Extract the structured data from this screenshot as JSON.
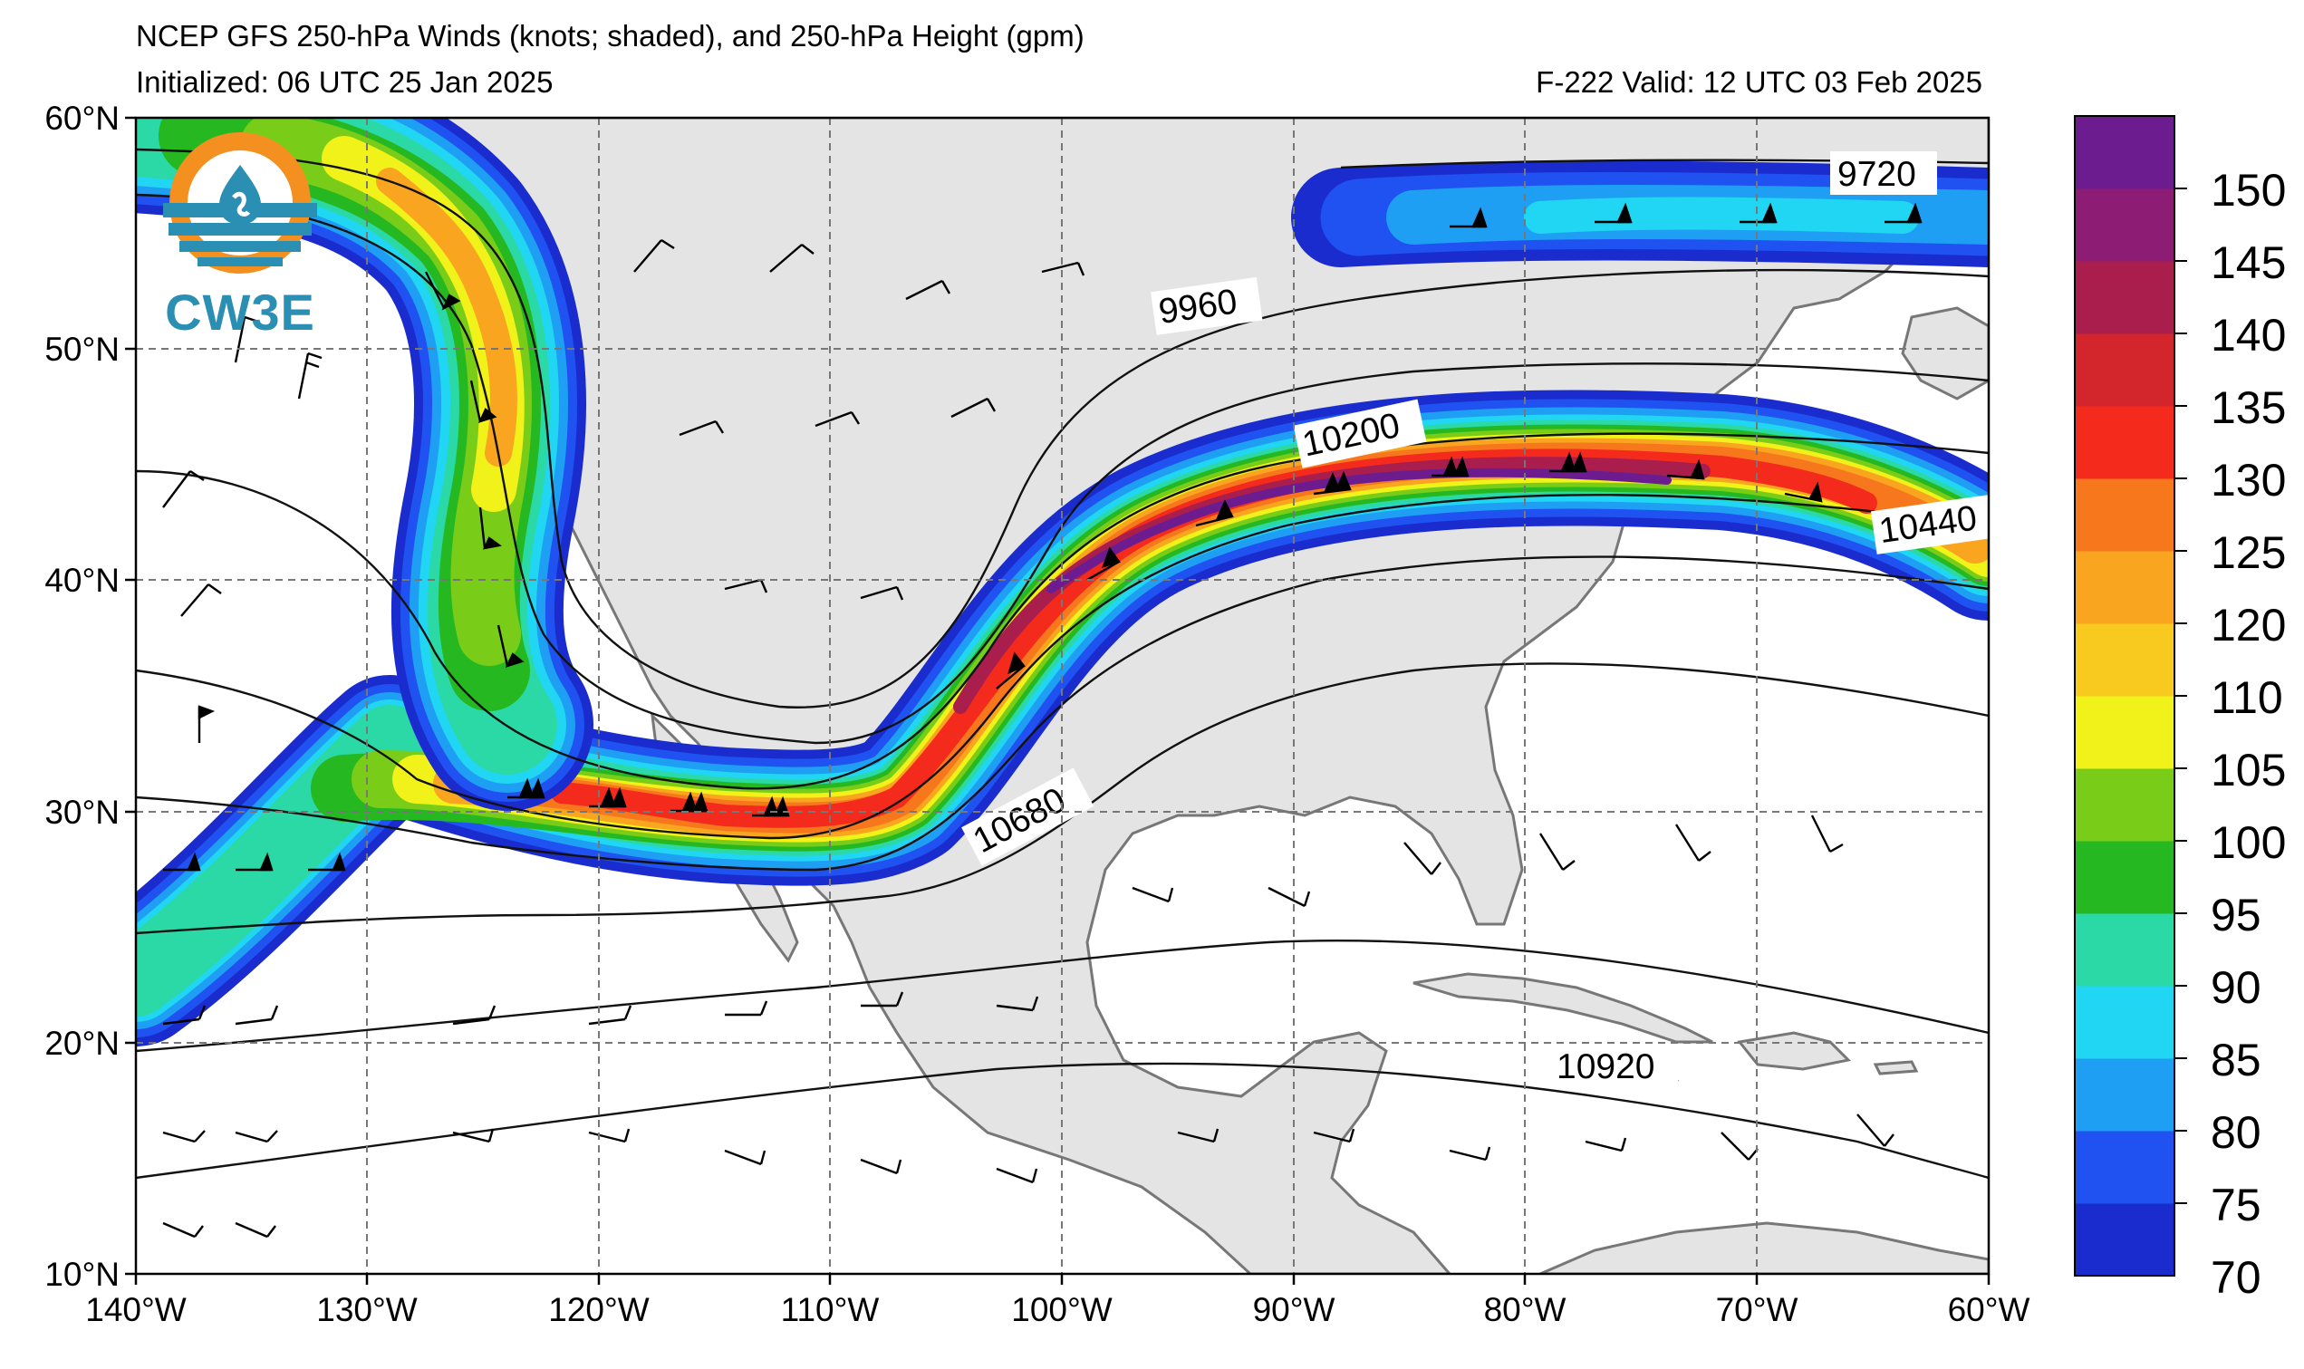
{
  "title": {
    "line1": "NCEP GFS 250-hPa Winds (knots; shaded), and 250-hPa Height (gpm)",
    "initialized": "Initialized: 06 UTC 25 Jan 2025",
    "valid": "F-222  Valid: 12 UTC 03 Feb 2025"
  },
  "logo": {
    "text": "CW3E"
  },
  "axes": {
    "lon_labels": [
      "140°W",
      "130°W",
      "120°W",
      "110°W",
      "100°W",
      "90°W",
      "80°W",
      "70°W",
      "60°W"
    ],
    "lat_labels": [
      "60°N",
      "50°N",
      "40°N",
      "30°N",
      "20°N",
      "10°N"
    ],
    "lon_range": [
      -140,
      -60
    ],
    "lat_range": [
      10,
      60
    ],
    "grid": "dashed"
  },
  "colorbar": {
    "ticks": [
      "150",
      "145",
      "140",
      "135",
      "130",
      "125",
      "120",
      "110",
      "105",
      "100",
      "95",
      "90",
      "85",
      "80",
      "75",
      "70"
    ],
    "levels": [
      70,
      75,
      80,
      85,
      90,
      95,
      100,
      105,
      110,
      120,
      125,
      130,
      135,
      140,
      145,
      150
    ],
    "colors": [
      "#1b2ccf",
      "#1f52f0",
      "#1f9ff4",
      "#21d6f2",
      "#2ad9a6",
      "#26b821",
      "#79cd19",
      "#f0f21a",
      "#f8c91e",
      "#f9a51f",
      "#f7771d",
      "#f42a1c",
      "#d3262c",
      "#aa1e4e",
      "#8d1d74",
      "#6c1c8f"
    ]
  },
  "contour_labels": [
    "9720",
    "9960",
    "10200",
    "10440",
    "10680",
    "10920"
  ],
  "chart_data": {
    "type": "map",
    "variable": "250-hPa wind speed (knots) shaded; 250-hPa geopotential height (gpm) contours",
    "height_contours_labeled": [
      9720,
      9960,
      10200,
      10440,
      10680,
      10920
    ],
    "jet_max_knots": 150
  }
}
